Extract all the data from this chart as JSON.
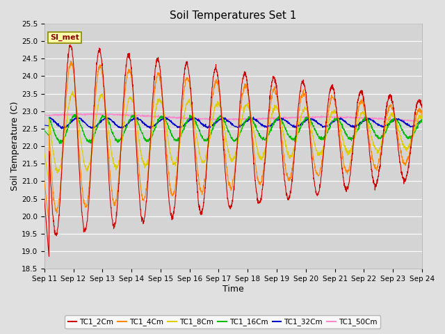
{
  "title": "Soil Temperatures Set 1",
  "xlabel": "Time",
  "ylabel": "Soil Temperature (C)",
  "ylim": [
    18.5,
    25.5
  ],
  "xlim": [
    0,
    13
  ],
  "xtick_labels": [
    "Sep 11",
    "Sep 12",
    "Sep 13",
    "Sep 14",
    "Sep 15",
    "Sep 16",
    "Sep 17",
    "Sep 18",
    "Sep 19",
    "Sep 20",
    "Sep 21",
    "Sep 22",
    "Sep 23",
    "Sep 24"
  ],
  "ytick_values": [
    18.5,
    19.0,
    19.5,
    20.0,
    20.5,
    21.0,
    21.5,
    22.0,
    22.5,
    23.0,
    23.5,
    24.0,
    24.5,
    25.0,
    25.5
  ],
  "series_colors": {
    "TC1_2Cm": "#cc0000",
    "TC1_4Cm": "#ff8800",
    "TC1_8Cm": "#ddcc00",
    "TC1_16Cm": "#00bb00",
    "TC1_32Cm": "#0000cc",
    "TC1_50Cm": "#ff88cc"
  },
  "legend_label": "SI_met",
  "legend_box_color": "#ffffaa",
  "legend_box_edge": "#888800",
  "bg_color": "#e0e0e0",
  "plot_bg_color": "#d4d4d4",
  "grid_color": "#ffffff",
  "title_fontsize": 11,
  "axis_fontsize": 9,
  "tick_fontsize": 7.5
}
